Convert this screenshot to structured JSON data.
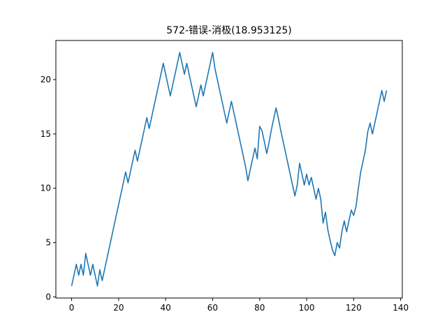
{
  "chart_data": {
    "type": "line",
    "title": "572-错误-消极(18.953125)",
    "xlabel": "",
    "ylabel": "",
    "xlim": [
      -6.7,
      140.7
    ],
    "ylim": [
      -0.1,
      23.6
    ],
    "xticks": [
      0,
      20,
      40,
      60,
      80,
      100,
      120,
      140
    ],
    "yticks": [
      0,
      5,
      10,
      15,
      20
    ],
    "grid": false,
    "colors": {
      "line": "#1f77b4",
      "axes": "#000000",
      "background": "#ffffff"
    },
    "series": [
      {
        "x": [
          0,
          1,
          2,
          3,
          4,
          5,
          6,
          7,
          8,
          9,
          10,
          11,
          12,
          13,
          14,
          15,
          16,
          17,
          18,
          19,
          20,
          21,
          22,
          23,
          24,
          25,
          26,
          27,
          28,
          29,
          30,
          31,
          32,
          33,
          34,
          35,
          36,
          37,
          38,
          39,
          40,
          41,
          42,
          43,
          44,
          45,
          46,
          47,
          48,
          49,
          50,
          51,
          52,
          53,
          54,
          55,
          56,
          57,
          58,
          59,
          60,
          61,
          62,
          63,
          64,
          65,
          66,
          67,
          68,
          69,
          70,
          71,
          72,
          73,
          74,
          75,
          76,
          77,
          78,
          79,
          80,
          81,
          82,
          83,
          84,
          85,
          86,
          87,
          88,
          89,
          90,
          91,
          92,
          93,
          94,
          95,
          96,
          97,
          98,
          99,
          100,
          101,
          102,
          103,
          104,
          105,
          106,
          107,
          108,
          109,
          110,
          111,
          112,
          113,
          114,
          115,
          116,
          117,
          118,
          119,
          120,
          121,
          122,
          123,
          124,
          125,
          126,
          127,
          128,
          129,
          130,
          131,
          132,
          133,
          134
        ],
        "values": [
          1,
          2,
          3,
          2,
          3,
          2,
          4,
          3,
          2,
          3,
          2,
          1,
          2.5,
          1.5,
          2.5,
          3.5,
          4.5,
          5.5,
          6.5,
          7.5,
          8.5,
          9.5,
          10.5,
          11.5,
          10.5,
          11.5,
          12.5,
          13.5,
          12.5,
          13.5,
          14.5,
          15.5,
          16.5,
          15.5,
          16.5,
          17.5,
          18.5,
          19.5,
          20.5,
          21.5,
          20.5,
          19.5,
          18.5,
          19.5,
          20.5,
          21.5,
          22.5,
          21.5,
          20.5,
          21.5,
          20.5,
          19.5,
          18.5,
          17.5,
          18.5,
          19.5,
          18.5,
          19.5,
          20.5,
          21.5,
          22.5,
          21,
          20,
          19,
          18,
          17,
          16,
          17,
          18,
          17,
          16,
          15,
          14,
          13,
          12,
          10.7,
          11.7,
          12.7,
          13.7,
          12.7,
          15.7,
          15.3,
          14.3,
          13.2,
          14.2,
          15.4,
          16.4,
          17.4,
          16.4,
          15.3,
          14.3,
          13.3,
          12.3,
          11.3,
          10.3,
          9.3,
          10.3,
          12.3,
          11.3,
          10.3,
          11.3,
          10.3,
          11,
          10,
          9,
          10,
          9,
          6.8,
          7.8,
          6.2,
          5.2,
          4.3,
          3.8,
          5,
          4.5,
          6,
          7,
          6,
          7,
          8,
          7.5,
          8.3,
          10,
          11.5,
          12.5,
          13.5,
          15.2,
          16,
          15,
          16,
          17,
          18,
          19,
          18,
          19
        ]
      }
    ]
  }
}
